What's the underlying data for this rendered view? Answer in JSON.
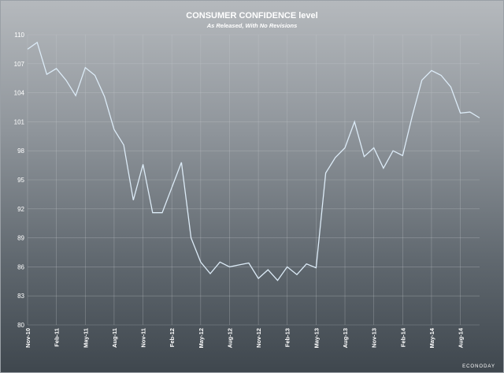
{
  "chart_data": {
    "type": "line",
    "title": "CONSUMER CONFIDENCE level",
    "subtitle": "As Released, With No Revisions",
    "xlabel": "",
    "ylabel": "",
    "ylim": [
      80,
      110
    ],
    "yticks": [
      80,
      83,
      86,
      89,
      92,
      95,
      98,
      101,
      104,
      107,
      110
    ],
    "grid": true,
    "x_tick_labels": [
      "Nov-10",
      "Feb-11",
      "May-11",
      "Aug-11",
      "Nov-11",
      "Feb-12",
      "May-12",
      "Aug-12",
      "Nov-12",
      "Feb-13",
      "May-13",
      "Aug-13",
      "Nov-13",
      "Feb-14",
      "May-14",
      "Aug-14"
    ],
    "x_tick_index": [
      0,
      3,
      6,
      9,
      12,
      15,
      18,
      21,
      24,
      27,
      30,
      33,
      36,
      39,
      42,
      45
    ],
    "series": [
      {
        "name": "",
        "values": [
          108.5,
          109.2,
          105.9,
          106.5,
          105.3,
          103.7,
          106.6,
          105.8,
          103.6,
          100.2,
          98.6,
          92.9,
          96.6,
          91.6,
          91.6,
          94.2,
          96.8,
          89.0,
          86.5,
          85.3,
          86.5,
          86.0,
          86.2,
          86.4,
          84.8,
          85.7,
          84.6,
          86.0,
          85.2,
          86.3,
          85.9,
          95.7,
          97.3,
          98.3,
          101.0,
          97.4,
          98.3,
          96.2,
          98.0,
          97.5,
          101.6,
          105.3,
          106.3,
          105.8,
          104.6,
          101.9,
          102.0,
          101.4
        ]
      }
    ]
  },
  "branding": {
    "label": "ECONODAY"
  },
  "colors": {
    "line": "#dcebf7",
    "grid": "#c4c8cc",
    "text": "#ffffff"
  }
}
